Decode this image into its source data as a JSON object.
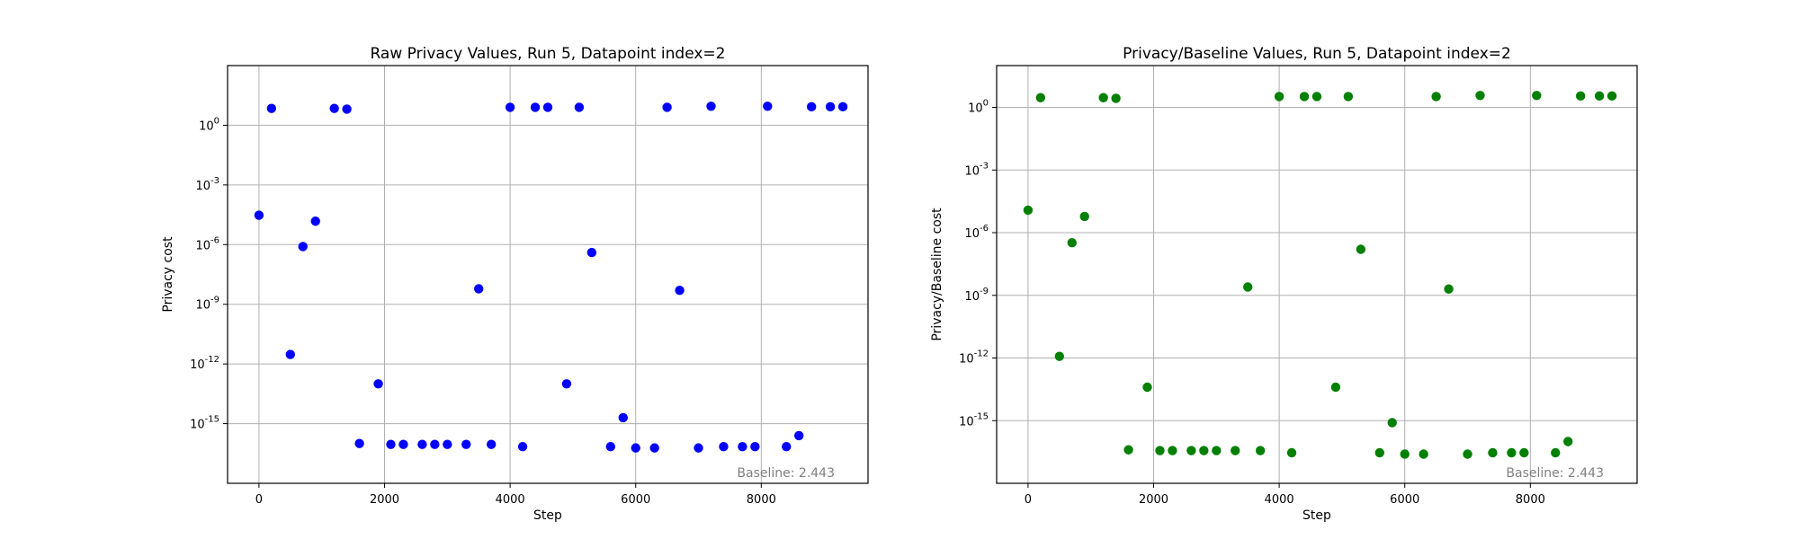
{
  "chart_data": [
    {
      "type": "scatter",
      "title": "Raw Privacy Values, Run 5, Datapoint index=2",
      "xlabel": "Step",
      "ylabel": "Privacy cost",
      "yscale": "log",
      "xlim": [
        -500,
        9700
      ],
      "ylim": [
        1e-18,
        1000
      ],
      "xticks": [
        0,
        2000,
        4000,
        6000,
        8000
      ],
      "yticks": [
        1,
        0.001,
        1e-06,
        1e-09,
        1e-12,
        1e-15
      ],
      "ytick_labels": [
        "10^0",
        "10^-3",
        "10^-6",
        "10^-9",
        "10^-12",
        "10^-15"
      ],
      "grid": true,
      "color": "#0000ff",
      "annotation": "Baseline: 2.443",
      "annotation_position": "bottom-right",
      "points": [
        [
          0,
          3e-05
        ],
        [
          200,
          7
        ],
        [
          500,
          3e-12
        ],
        [
          700,
          8e-07
        ],
        [
          900,
          1.5e-05
        ],
        [
          1200,
          7
        ],
        [
          1400,
          6.5
        ],
        [
          1600,
          1e-16
        ],
        [
          1900,
          1e-13
        ],
        [
          2100,
          9e-17
        ],
        [
          2300,
          9e-17
        ],
        [
          2600,
          9e-17
        ],
        [
          2800,
          9e-17
        ],
        [
          3000,
          9e-17
        ],
        [
          3300,
          9e-17
        ],
        [
          3500,
          6e-09
        ],
        [
          3700,
          9e-17
        ],
        [
          4000,
          8
        ],
        [
          4200,
          7e-17
        ],
        [
          4400,
          8
        ],
        [
          4600,
          8
        ],
        [
          4900,
          1e-13
        ],
        [
          5100,
          8
        ],
        [
          5300,
          4e-07
        ],
        [
          5600,
          7e-17
        ],
        [
          5800,
          2e-15
        ],
        [
          6000,
          6e-17
        ],
        [
          6300,
          6e-17
        ],
        [
          6500,
          8
        ],
        [
          6700,
          5e-09
        ],
        [
          7000,
          6e-17
        ],
        [
          7200,
          9
        ],
        [
          7400,
          7e-17
        ],
        [
          7700,
          7e-17
        ],
        [
          7900,
          7e-17
        ],
        [
          8100,
          9
        ],
        [
          8400,
          7e-17
        ],
        [
          8600,
          2.5e-16
        ],
        [
          8800,
          8.5
        ],
        [
          9100,
          8.5
        ],
        [
          9300,
          8.5
        ]
      ]
    },
    {
      "type": "scatter",
      "title": "Privacy/Baseline Values, Run 5, Datapoint index=2",
      "xlabel": "Step",
      "ylabel": "Privacy/Baseline cost",
      "yscale": "log",
      "xlim": [
        -500,
        9700
      ],
      "ylim": [
        1e-18,
        100
      ],
      "xticks": [
        0,
        2000,
        4000,
        6000,
        8000
      ],
      "yticks": [
        1,
        0.001,
        1e-06,
        1e-09,
        1e-12,
        1e-15
      ],
      "ytick_labels": [
        "10^0",
        "10^-3",
        "10^-6",
        "10^-9",
        "10^-12",
        "10^-15"
      ],
      "grid": true,
      "color": "#008000",
      "annotation": "Baseline: 2.443",
      "annotation_position": "bottom-right",
      "points": [
        [
          0,
          1.2e-05
        ],
        [
          200,
          2.9
        ],
        [
          500,
          1.2e-12
        ],
        [
          700,
          3.3e-07
        ],
        [
          900,
          6e-06
        ],
        [
          1200,
          2.9
        ],
        [
          1400,
          2.7
        ],
        [
          1600,
          4e-17
        ],
        [
          1900,
          4e-14
        ],
        [
          2100,
          3.7e-17
        ],
        [
          2300,
          3.7e-17
        ],
        [
          2600,
          3.7e-17
        ],
        [
          2800,
          3.7e-17
        ],
        [
          3000,
          3.7e-17
        ],
        [
          3300,
          3.7e-17
        ],
        [
          3500,
          2.5e-09
        ],
        [
          3700,
          3.7e-17
        ],
        [
          4000,
          3.3
        ],
        [
          4200,
          2.9e-17
        ],
        [
          4400,
          3.3
        ],
        [
          4600,
          3.3
        ],
        [
          4900,
          4e-14
        ],
        [
          5100,
          3.3
        ],
        [
          5300,
          1.6e-07
        ],
        [
          5600,
          2.9e-17
        ],
        [
          5800,
          8e-16
        ],
        [
          6000,
          2.5e-17
        ],
        [
          6300,
          2.5e-17
        ],
        [
          6500,
          3.3
        ],
        [
          6700,
          2e-09
        ],
        [
          7000,
          2.5e-17
        ],
        [
          7200,
          3.7
        ],
        [
          7400,
          2.9e-17
        ],
        [
          7700,
          2.9e-17
        ],
        [
          7900,
          2.9e-17
        ],
        [
          8100,
          3.7
        ],
        [
          8400,
          2.9e-17
        ],
        [
          8600,
          1e-16
        ],
        [
          8800,
          3.5
        ],
        [
          9100,
          3.5
        ],
        [
          9300,
          3.5
        ]
      ]
    }
  ]
}
